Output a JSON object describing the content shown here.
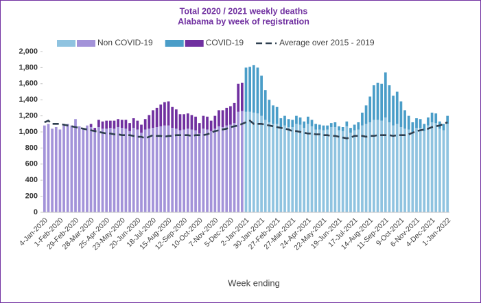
{
  "chart_data": {
    "type": "bar",
    "stacked": true,
    "title": "Total 2020 / 2021 weekly deaths",
    "subtitle": "Alabama by week of registration",
    "x_label": "Week ending",
    "categories": [
      "4-Jan-2020",
      null,
      null,
      null,
      "1-Feb-2020",
      null,
      null,
      null,
      "29-Feb-2020",
      null,
      null,
      null,
      "28-Mar-2020",
      null,
      null,
      null,
      "25-Apr-2020",
      null,
      null,
      null,
      "23-May-2020",
      null,
      null,
      null,
      "20-Jun-2020",
      null,
      null,
      null,
      "18-Jul-2020",
      null,
      null,
      null,
      "15-Aug-2020",
      null,
      null,
      null,
      "12-Sep-2020",
      null,
      null,
      null,
      "10-Oct-2020",
      null,
      null,
      null,
      "7-Nov-2020",
      null,
      null,
      null,
      "5-Dec-2020",
      null,
      null,
      null,
      "2-Jan-2021",
      null,
      null,
      null,
      "30-Jan-2021",
      null,
      null,
      null,
      "27-Feb-2021",
      null,
      null,
      null,
      "27-Mar-2021",
      null,
      null,
      null,
      "24-Apr-2021",
      null,
      null,
      null,
      "22-May-2021",
      null,
      null,
      null,
      "19-Jun-2021",
      null,
      null,
      null,
      "17-Jul-2021",
      null,
      null,
      null,
      "14-Aug-2021",
      null,
      null,
      null,
      "11-Sep-2021",
      null,
      null,
      null,
      "9-Oct-2021",
      null,
      null,
      null,
      "6-Nov-2021",
      null,
      null,
      null,
      "4-Dec-2021",
      null,
      null,
      null,
      "1-Jan-2022"
    ],
    "series": [
      {
        "name": "Non COVID-19",
        "legend_colors": [
          "#8fc3e0",
          "#a393d9"
        ],
        "values": [
          1080,
          1100,
          1040,
          1060,
          1030,
          1100,
          1100,
          1080,
          1160,
          1070,
          1050,
          1080,
          1060,
          1010,
          1060,
          1040,
          1040,
          1050,
          1040,
          1060,
          1050,
          1040,
          1010,
          1050,
          1030,
          990,
          1030,
          1040,
          1050,
          1060,
          1070,
          1080,
          1080,
          1050,
          1040,
          1020,
          1030,
          1040,
          1030,
          1020,
          980,
          1040,
          1030,
          1010,
          1040,
          1070,
          1060,
          1080,
          1090,
          1110,
          1250,
          1260,
          1250,
          1250,
          1240,
          1230,
          1200,
          1150,
          1120,
          1100,
          1100,
          1050,
          1080,
          1060,
          1060,
          1100,
          1090,
          1050,
          1100,
          1070,
          1030,
          1030,
          1020,
          1030,
          1060,
          1060,
          1020,
          1010,
          1070,
          990,
          1020,
          1030,
          1080,
          1100,
          1120,
          1150,
          1150,
          1140,
          1180,
          1120,
          1080,
          1100,
          1060,
          1040,
          1030,
          1000,
          1050,
          1050,
          1010,
          1080,
          1120,
          1110,
          1040,
          1020,
          1100
        ],
        "colors": [
          "#a393d9",
          "#a393d9",
          "#a393d9",
          "#a393d9",
          "#a393d9",
          "#a393d9",
          "#a393d9",
          "#a393d9",
          "#a393d9",
          "#a393d9",
          "#a393d9",
          "#a393d9",
          "#a393d9",
          "#a393d9",
          "#a393d9",
          "#a393d9",
          "#a393d9",
          "#a393d9",
          "#a393d9",
          "#a393d9",
          "#a393d9",
          "#a393d9",
          "#a393d9",
          "#a393d9",
          "#a393d9",
          "#a393d9",
          "#a393d9",
          "#a393d9",
          "#a393d9",
          "#a393d9",
          "#a393d9",
          "#a393d9",
          "#a393d9",
          "#a393d9",
          "#a393d9",
          "#a393d9",
          "#a393d9",
          "#a393d9",
          "#a393d9",
          "#a393d9",
          "#a393d9",
          "#a393d9",
          "#a393d9",
          "#a393d9",
          "#a393d9",
          "#a393d9",
          "#a393d9",
          "#a393d9",
          "#a393d9",
          "#a393d9",
          "#a393d9",
          "#a393d9",
          "#8fc3e0",
          "#8fc3e0",
          "#8fc3e0",
          "#8fc3e0",
          "#8fc3e0",
          "#8fc3e0",
          "#8fc3e0",
          "#8fc3e0",
          "#8fc3e0",
          "#8fc3e0",
          "#8fc3e0",
          "#8fc3e0",
          "#8fc3e0",
          "#8fc3e0",
          "#8fc3e0",
          "#8fc3e0",
          "#8fc3e0",
          "#8fc3e0",
          "#8fc3e0",
          "#8fc3e0",
          "#8fc3e0",
          "#8fc3e0",
          "#8fc3e0",
          "#8fc3e0",
          "#8fc3e0",
          "#8fc3e0",
          "#8fc3e0",
          "#8fc3e0",
          "#8fc3e0",
          "#8fc3e0",
          "#8fc3e0",
          "#8fc3e0",
          "#8fc3e0",
          "#8fc3e0",
          "#8fc3e0",
          "#8fc3e0",
          "#8fc3e0",
          "#8fc3e0",
          "#8fc3e0",
          "#8fc3e0",
          "#8fc3e0",
          "#8fc3e0",
          "#8fc3e0",
          "#8fc3e0",
          "#8fc3e0",
          "#8fc3e0",
          "#8fc3e0",
          "#8fc3e0",
          "#8fc3e0",
          "#8fc3e0",
          "#8fc3e0",
          "#8fc3e0",
          "#8fc3e0"
        ]
      },
      {
        "name": "COVID-19",
        "legend_colors": [
          "#4a9dc8",
          "#7030a0"
        ],
        "values": [
          0,
          0,
          0,
          0,
          0,
          0,
          0,
          0,
          0,
          0,
          0,
          0,
          40,
          40,
          90,
          90,
          100,
          90,
          100,
          100,
          100,
          110,
          100,
          120,
          110,
          100,
          130,
          170,
          220,
          240,
          270,
          290,
          300,
          260,
          240,
          200,
          190,
          190,
          180,
          170,
          130,
          160,
          160,
          130,
          160,
          200,
          210,
          220,
          230,
          250,
          350,
          350,
          550,
          560,
          590,
          570,
          500,
          370,
          280,
          230,
          210,
          120,
          120,
          100,
          90,
          100,
          90,
          80,
          90,
          80,
          70,
          60,
          60,
          50,
          50,
          60,
          50,
          50,
          60,
          60,
          70,
          90,
          160,
          230,
          320,
          430,
          460,
          460,
          560,
          460,
          370,
          400,
          320,
          230,
          170,
          120,
          120,
          110,
          90,
          100,
          120,
          120,
          90,
          80,
          100
        ],
        "colors": [
          "#7030a0",
          "#7030a0",
          "#7030a0",
          "#7030a0",
          "#7030a0",
          "#7030a0",
          "#7030a0",
          "#7030a0",
          "#7030a0",
          "#7030a0",
          "#7030a0",
          "#7030a0",
          "#7030a0",
          "#7030a0",
          "#7030a0",
          "#7030a0",
          "#7030a0",
          "#7030a0",
          "#7030a0",
          "#7030a0",
          "#7030a0",
          "#7030a0",
          "#7030a0",
          "#7030a0",
          "#7030a0",
          "#7030a0",
          "#7030a0",
          "#7030a0",
          "#7030a0",
          "#7030a0",
          "#7030a0",
          "#7030a0",
          "#7030a0",
          "#7030a0",
          "#7030a0",
          "#7030a0",
          "#7030a0",
          "#7030a0",
          "#7030a0",
          "#7030a0",
          "#7030a0",
          "#7030a0",
          "#7030a0",
          "#7030a0",
          "#7030a0",
          "#7030a0",
          "#7030a0",
          "#7030a0",
          "#7030a0",
          "#7030a0",
          "#7030a0",
          "#7030a0",
          "#4a9dc8",
          "#4a9dc8",
          "#4a9dc8",
          "#4a9dc8",
          "#4a9dc8",
          "#4a9dc8",
          "#4a9dc8",
          "#4a9dc8",
          "#4a9dc8",
          "#4a9dc8",
          "#4a9dc8",
          "#4a9dc8",
          "#4a9dc8",
          "#4a9dc8",
          "#4a9dc8",
          "#4a9dc8",
          "#4a9dc8",
          "#4a9dc8",
          "#4a9dc8",
          "#4a9dc8",
          "#4a9dc8",
          "#4a9dc8",
          "#4a9dc8",
          "#4a9dc8",
          "#4a9dc8",
          "#4a9dc8",
          "#4a9dc8",
          "#4a9dc8",
          "#4a9dc8",
          "#4a9dc8",
          "#4a9dc8",
          "#4a9dc8",
          "#4a9dc8",
          "#4a9dc8",
          "#4a9dc8",
          "#4a9dc8",
          "#4a9dc8",
          "#4a9dc8",
          "#4a9dc8",
          "#4a9dc8",
          "#4a9dc8",
          "#4a9dc8",
          "#4a9dc8",
          "#4a9dc8",
          "#4a9dc8",
          "#4a9dc8",
          "#4a9dc8",
          "#4a9dc8",
          "#4a9dc8",
          "#4a9dc8",
          "#4a9dc8",
          "#4a9dc8",
          "#4a9dc8"
        ]
      },
      {
        "name": "Average over 2015 - 2019",
        "type": "line",
        "color": "#2e3f4f",
        "dashed": true,
        "values": [
          1120,
          1140,
          1100,
          1100,
          1100,
          1090,
          1080,
          1070,
          1060,
          1050,
          1040,
          1030,
          1020,
          1010,
          1000,
          990,
          980,
          980,
          970,
          970,
          960,
          960,
          960,
          950,
          940,
          940,
          920,
          940,
          960,
          950,
          950,
          940,
          950,
          950,
          960,
          960,
          960,
          960,
          950,
          960,
          960,
          960,
          970,
          990,
          1010,
          1020,
          1030,
          1040,
          1060,
          1070,
          1080,
          1100,
          1120,
          1140,
          1100,
          1100,
          1100,
          1090,
          1080,
          1070,
          1060,
          1050,
          1040,
          1030,
          1010,
          1010,
          1000,
          990,
          980,
          980,
          970,
          970,
          960,
          960,
          950,
          950,
          940,
          930,
          920,
          930,
          950,
          950,
          950,
          940,
          950,
          950,
          960,
          960,
          960,
          960,
          950,
          960,
          960,
          960,
          970,
          990,
          1010,
          1020,
          1030,
          1040,
          1060,
          1070,
          1080,
          1100,
          1120
        ]
      }
    ],
    "ylim": [
      0,
      2000
    ],
    "yticks": [
      0,
      200,
      400,
      600,
      800,
      {
        "value": 1000,
        "label": "1,000"
      },
      {
        "value": 1200,
        "label": "1,200"
      },
      {
        "value": 1400,
        "label": "1,400"
      },
      {
        "value": 1600,
        "label": "1,600"
      },
      {
        "value": 1800,
        "label": "1,800"
      },
      {
        "value": 2000,
        "label": "2,000"
      }
    ],
    "grid": false,
    "legend": "top"
  }
}
